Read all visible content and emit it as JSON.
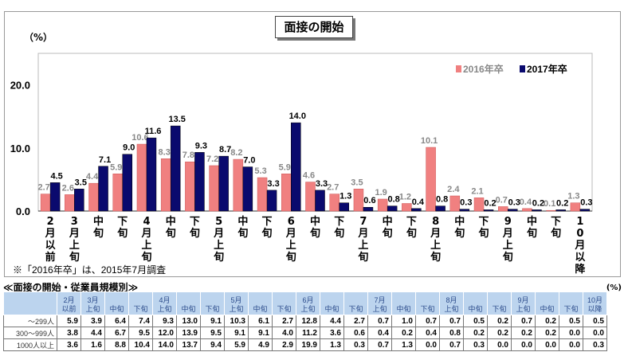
{
  "title": "面接の開始",
  "unit": "（%）",
  "note": "※「2016年卒」は、2015年7月調査",
  "colors": {
    "s2016": "#f08080",
    "s2017": "#0a0a6e"
  },
  "chart_data": {
    "type": "bar",
    "title": "面接の開始",
    "ylabel": "（%）",
    "ylim": [
      0,
      25
    ],
    "yticks": [
      "0.0",
      "10.0",
      "20.0"
    ],
    "legend": "top-right",
    "categories": [
      "2月以前",
      "3月上旬",
      "中旬",
      "下旬",
      "4月上旬",
      "中旬",
      "下旬",
      "5月上旬",
      "中旬",
      "下旬",
      "6月上旬",
      "中旬",
      "下旬",
      "7月上旬",
      "中旬",
      "下旬",
      "8月上旬",
      "中旬",
      "下旬",
      "9月上旬",
      "中旬",
      "下旬",
      "10月以降"
    ],
    "series": [
      {
        "name": "2016年卒",
        "values": [
          2.7,
          2.6,
          4.4,
          5.9,
          10.6,
          8.3,
          7.8,
          7.2,
          8.2,
          5.3,
          5.9,
          4.6,
          2.7,
          3.5,
          1.9,
          1.2,
          10.1,
          2.4,
          2.1,
          0.7,
          0.4,
          0.1,
          1.3
        ]
      },
      {
        "name": "2017年卒",
        "values": [
          4.5,
          3.5,
          7.1,
          9.0,
          11.6,
          13.5,
          9.3,
          8.7,
          7.0,
          3.3,
          14.0,
          3.3,
          1.3,
          0.6,
          0.8,
          0.4,
          0.8,
          0.3,
          0.2,
          0.3,
          0.2,
          0.2,
          0.3
        ]
      }
    ]
  },
  "table": {
    "title": "≪面接の開始・従業員規模別≫",
    "unit": "(%)",
    "headers": [
      "2月\n以前",
      "3月\n上旬",
      "中旬",
      "下旬",
      "4月\n上旬",
      "中旬",
      "下旬",
      "5月\n上旬",
      "中旬",
      "下旬",
      "6月\n上旬",
      "中旬",
      "下旬",
      "7月\n上旬",
      "中旬",
      "下旬",
      "8月\n上旬",
      "中旬",
      "下旬",
      "9月\n上旬",
      "中旬",
      "下旬",
      "10月\n以降"
    ],
    "rows": [
      {
        "label": "～299人",
        "values": [
          "5.9",
          "3.9",
          "6.4",
          "7.4",
          "9.3",
          "13.0",
          "9.1",
          "10.3",
          "6.1",
          "2.7",
          "12.8",
          "4.4",
          "2.7",
          "0.7",
          "1.0",
          "0.7",
          "0.7",
          "0.5",
          "0.2",
          "0.7",
          "0.2",
          "0.5",
          "0.5"
        ]
      },
      {
        "label": "300～999人",
        "values": [
          "3.8",
          "4.4",
          "6.7",
          "9.5",
          "12.0",
          "13.9",
          "9.5",
          "9.1",
          "9.1",
          "4.0",
          "11.2",
          "3.6",
          "0.6",
          "0.4",
          "0.2",
          "0.4",
          "0.8",
          "0.2",
          "0.2",
          "0.2",
          "0.2",
          "0.0",
          "0.0"
        ]
      },
      {
        "label": "1000人以上",
        "values": [
          "3.6",
          "1.6",
          "8.8",
          "10.4",
          "14.0",
          "13.7",
          "9.4",
          "5.9",
          "4.9",
          "2.9",
          "19.9",
          "1.3",
          "0.3",
          "0.7",
          "1.3",
          "0.0",
          "0.7",
          "0.3",
          "0.0",
          "0.0",
          "0.0",
          "0.0",
          "0.3"
        ]
      }
    ]
  }
}
